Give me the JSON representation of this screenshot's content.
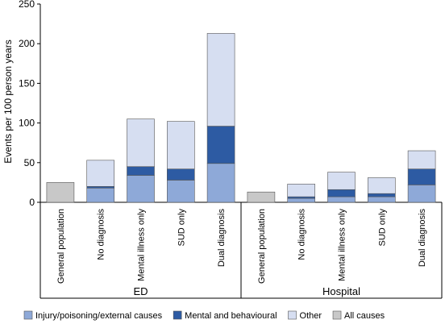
{
  "chart_data": {
    "type": "bar",
    "stacked": true,
    "ylabel": "Events per 100 person years",
    "ylim": [
      0,
      250
    ],
    "yticks": [
      0,
      50,
      100,
      150,
      200,
      250
    ],
    "grid": false,
    "legend_position": "bottom",
    "groups": [
      {
        "name": "ED",
        "categories": [
          {
            "label": "General population",
            "all_causes": 25
          },
          {
            "label": "No diagnosis",
            "injury": 18,
            "mental": 2,
            "other": 33
          },
          {
            "label": "Mental illness only",
            "injury": 34,
            "mental": 11,
            "other": 60
          },
          {
            "label": "SUD only",
            "injury": 28,
            "mental": 14,
            "other": 60
          },
          {
            "label": "Dual diagnosis",
            "injury": 49,
            "mental": 47,
            "other": 117
          }
        ]
      },
      {
        "name": "Hospital",
        "categories": [
          {
            "label": "General population",
            "all_causes": 13
          },
          {
            "label": "No diagnosis",
            "injury": 5,
            "mental": 2,
            "other": 16
          },
          {
            "label": "Mental illness only",
            "injury": 7,
            "mental": 9,
            "other": 22
          },
          {
            "label": "SUD only",
            "injury": 7,
            "mental": 4,
            "other": 20
          },
          {
            "label": "Dual diagnosis",
            "injury": 22,
            "mental": 20,
            "other": 23
          }
        ]
      }
    ],
    "series": [
      {
        "key": "injury",
        "name": "Injury/poisoning/external causes",
        "color": "#8ea9d8"
      },
      {
        "key": "mental",
        "name": "Mental and behavioural",
        "color": "#2d5ba3"
      },
      {
        "key": "other",
        "name": "Other",
        "color": "#d6def1"
      },
      {
        "key": "all_causes",
        "name": "All causes",
        "color": "#c8c8c8"
      }
    ]
  }
}
